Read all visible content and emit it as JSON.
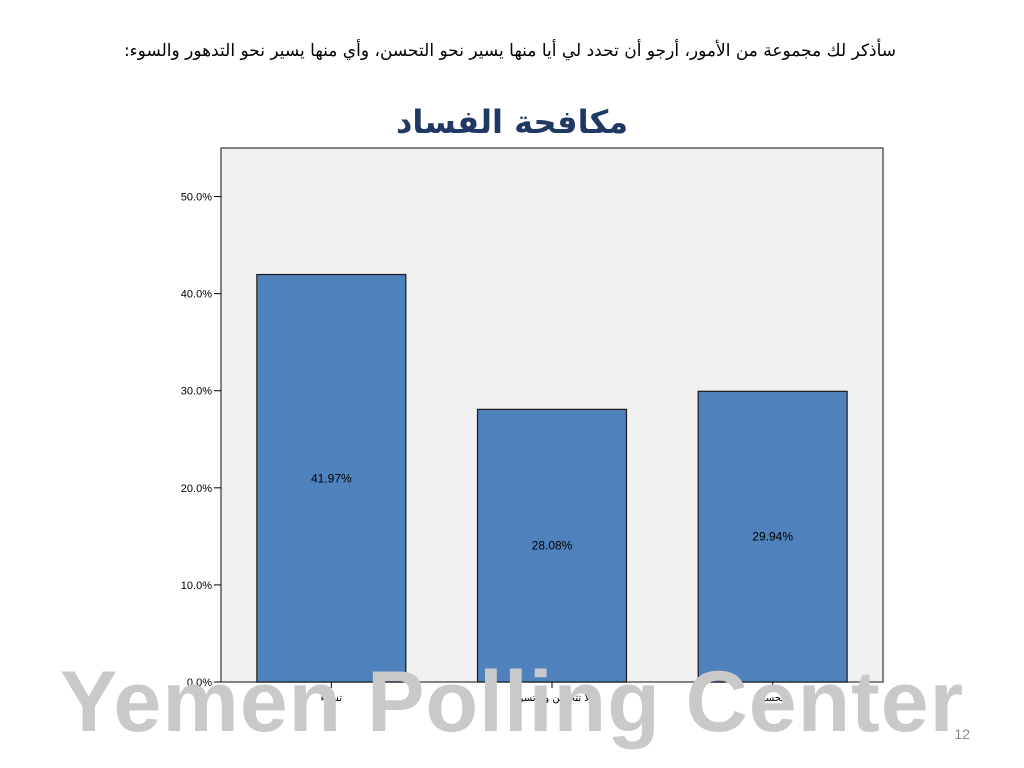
{
  "slide": {
    "question": "سأذكر لك مجموعة من الأمور، أرجو أن تحدد لي أيا منها يسير نحو التحسن، وأي منها يسير نحو التدهور والسوء:",
    "watermark": "Yemen Polling Center",
    "slide_number": "12"
  },
  "chart_data": {
    "type": "bar",
    "title": "مكافحة الفساد",
    "categories": [
      "تسوء",
      "لا تتحسن ولا تسوء",
      "تتحسن"
    ],
    "values": [
      41.97,
      28.08,
      29.94
    ],
    "data_labels": [
      "41.97%",
      "28.08%",
      "29.94%"
    ],
    "ylim": [
      0,
      55
    ],
    "yticks": [
      0,
      10,
      20,
      30,
      40,
      50
    ],
    "ytick_labels": [
      "0.0%",
      "10.0%",
      "20.0%",
      "30.0%",
      "40.0%",
      "50.0%"
    ],
    "xlabel": "",
    "ylabel": "",
    "grid": false,
    "bar_color": "#4f81bd",
    "plot_background": "#f0f0f0"
  }
}
